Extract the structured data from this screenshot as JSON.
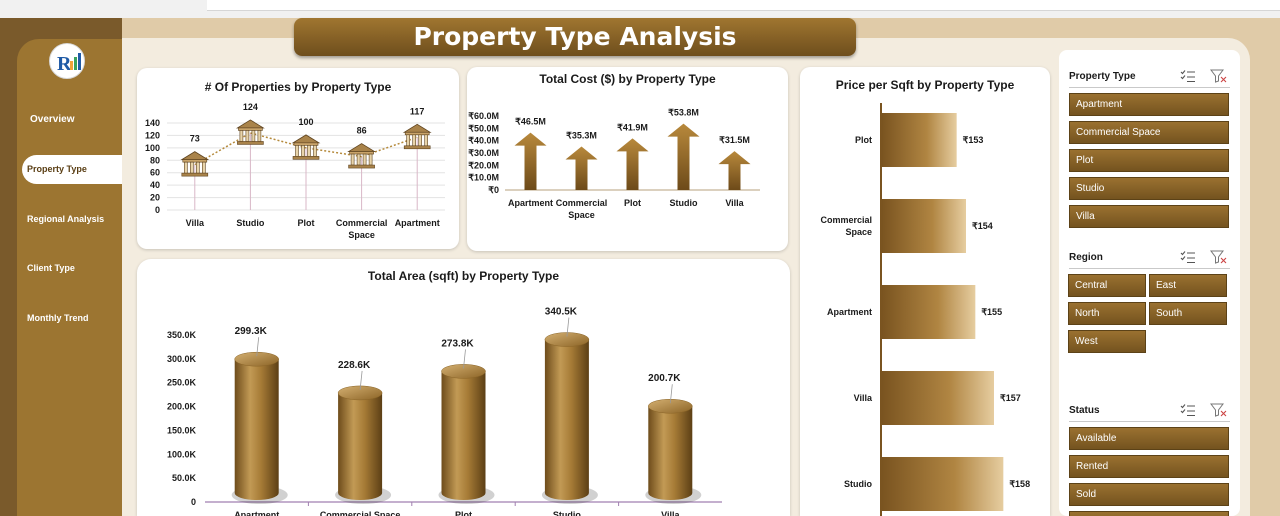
{
  "header": {
    "title": "Property Type Analysis"
  },
  "sidebar": {
    "items": [
      {
        "label": "Overview"
      },
      {
        "label": "Property Type"
      },
      {
        "label": "Regional Analysis"
      },
      {
        "label": "Client Type"
      },
      {
        "label": "Monthly Trend"
      }
    ],
    "active": "Property Type"
  },
  "colors": {
    "brand_dark": "#6e4e1d",
    "brand": "#9c7531",
    "accent_line": "#c9a35a",
    "background": "#f3ecdf"
  },
  "chart_data": [
    {
      "type": "line",
      "title": "# Of Properties by Property Type",
      "categories": [
        "Villa",
        "Studio",
        "Plot",
        "Commercial Space",
        "Apartment"
      ],
      "values": [
        73,
        124,
        100,
        86,
        117
      ],
      "data_labels": [
        "73",
        "124",
        "100",
        "86",
        "117"
      ],
      "yticks": [
        "140",
        "120",
        "100",
        "80",
        "60",
        "40",
        "20",
        "0"
      ],
      "ylim": [
        0,
        140
      ],
      "marker_icon": "bank-icon",
      "grid": true
    },
    {
      "type": "bar",
      "title": "Total Cost ($) by Property Type",
      "categories": [
        "Apartment",
        "Commercial Space",
        "Plot",
        "Studio",
        "Villa"
      ],
      "values": [
        46.5,
        35.3,
        41.9,
        53.8,
        31.5
      ],
      "data_labels": [
        "₹46.5M",
        "₹35.3M",
        "₹41.9M",
        "₹53.8M",
        "₹31.5M"
      ],
      "yticks": [
        "₹60.0M",
        "₹50.0M",
        "₹40.0M",
        "₹30.0M",
        "₹20.0M",
        "₹10.0M",
        "₹0"
      ],
      "ylim": [
        0,
        60
      ],
      "marker_icon": "up-arrow-icon",
      "grid": false
    },
    {
      "type": "bar",
      "orientation": "horizontal",
      "title": "Price per Sqft by Property Type",
      "categories": [
        "Plot",
        "Commercial Space",
        "Apartment",
        "Villa",
        "Studio"
      ],
      "values": [
        153,
        154,
        155,
        157,
        158
      ],
      "data_labels": [
        "₹153",
        "₹154",
        "₹155",
        "₹157",
        "₹158"
      ]
    },
    {
      "type": "bar",
      "style": "3d-cylinder",
      "title": "Total Area (sqft) by Property Type",
      "categories": [
        "Apartment",
        "Commercial Space",
        "Plot",
        "Studio",
        "Villa"
      ],
      "values": [
        299.3,
        228.6,
        273.8,
        340.5,
        200.7
      ],
      "data_labels": [
        "299.3K",
        "228.6K",
        "273.8K",
        "340.5K",
        "200.7K"
      ],
      "yticks": [
        "350.0K",
        "300.0K",
        "250.0K",
        "200.0K",
        "150.0K",
        "100.0K",
        "50.0K",
        "0"
      ],
      "ylim": [
        0,
        350
      ]
    }
  ],
  "slicers": [
    {
      "title": "Property Type",
      "items": [
        "Apartment",
        "Commercial Space",
        "Plot",
        "Studio",
        "Villa"
      ],
      "columns": 1
    },
    {
      "title": "Region",
      "items": [
        "Central",
        "East",
        "North",
        "South",
        "West"
      ],
      "columns": 2
    },
    {
      "title": "Status",
      "items": [
        "Available",
        "Rented",
        "Sold",
        ""
      ],
      "columns": 1
    }
  ]
}
